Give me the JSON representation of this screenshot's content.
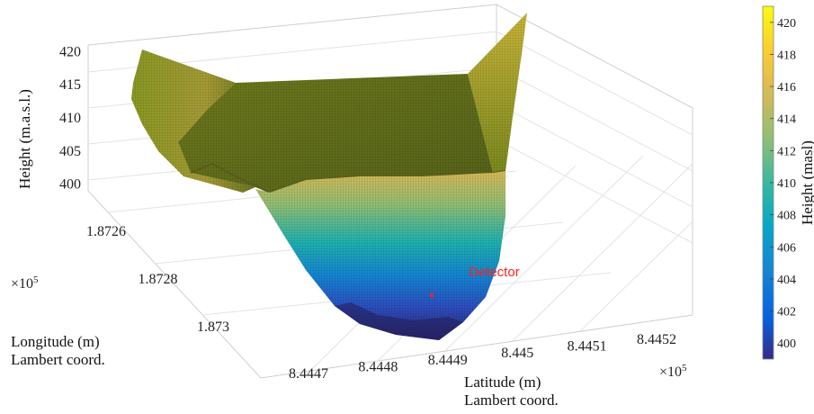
{
  "chart_data": {
    "type": "surface3d",
    "zlabel": "Height (m.a.s.l.)",
    "ylabel_line1": "Longitude (m)",
    "ylabel_line2": "Lambert coord.",
    "xlabel_line1": "Latitude (m)",
    "xlabel_line2": "Lambert coord.",
    "colorbar_label": "Height (masl)",
    "colormap": "parula",
    "x_ticks": [
      "8.4447",
      "8.4448",
      "8.4449",
      "8.445",
      "8.4451",
      "8.4452"
    ],
    "x_exponent": "×10",
    "x_exponent_power": "5",
    "y_ticks": [
      "1.8726",
      "1.8728",
      "1.873"
    ],
    "y_exponent": "×10",
    "y_exponent_power": "5",
    "z_ticks": [
      "400",
      "405",
      "410",
      "415",
      "420"
    ],
    "zlim": [
      399,
      421
    ],
    "colorbar_ticks": [
      "400",
      "402",
      "404",
      "406",
      "408",
      "410",
      "412",
      "414",
      "416",
      "418",
      "420"
    ],
    "colorbar_range": [
      399,
      421
    ],
    "annotation": {
      "text": "Detector",
      "color": "#ff2020"
    },
    "colors": {
      "parula_stops": [
        "#352a87",
        "#0363e1",
        "#1485d4",
        "#06a7c6",
        "#38b99e",
        "#92bf73",
        "#d9ba56",
        "#fcce2e",
        "#f9fb0e"
      ]
    }
  }
}
